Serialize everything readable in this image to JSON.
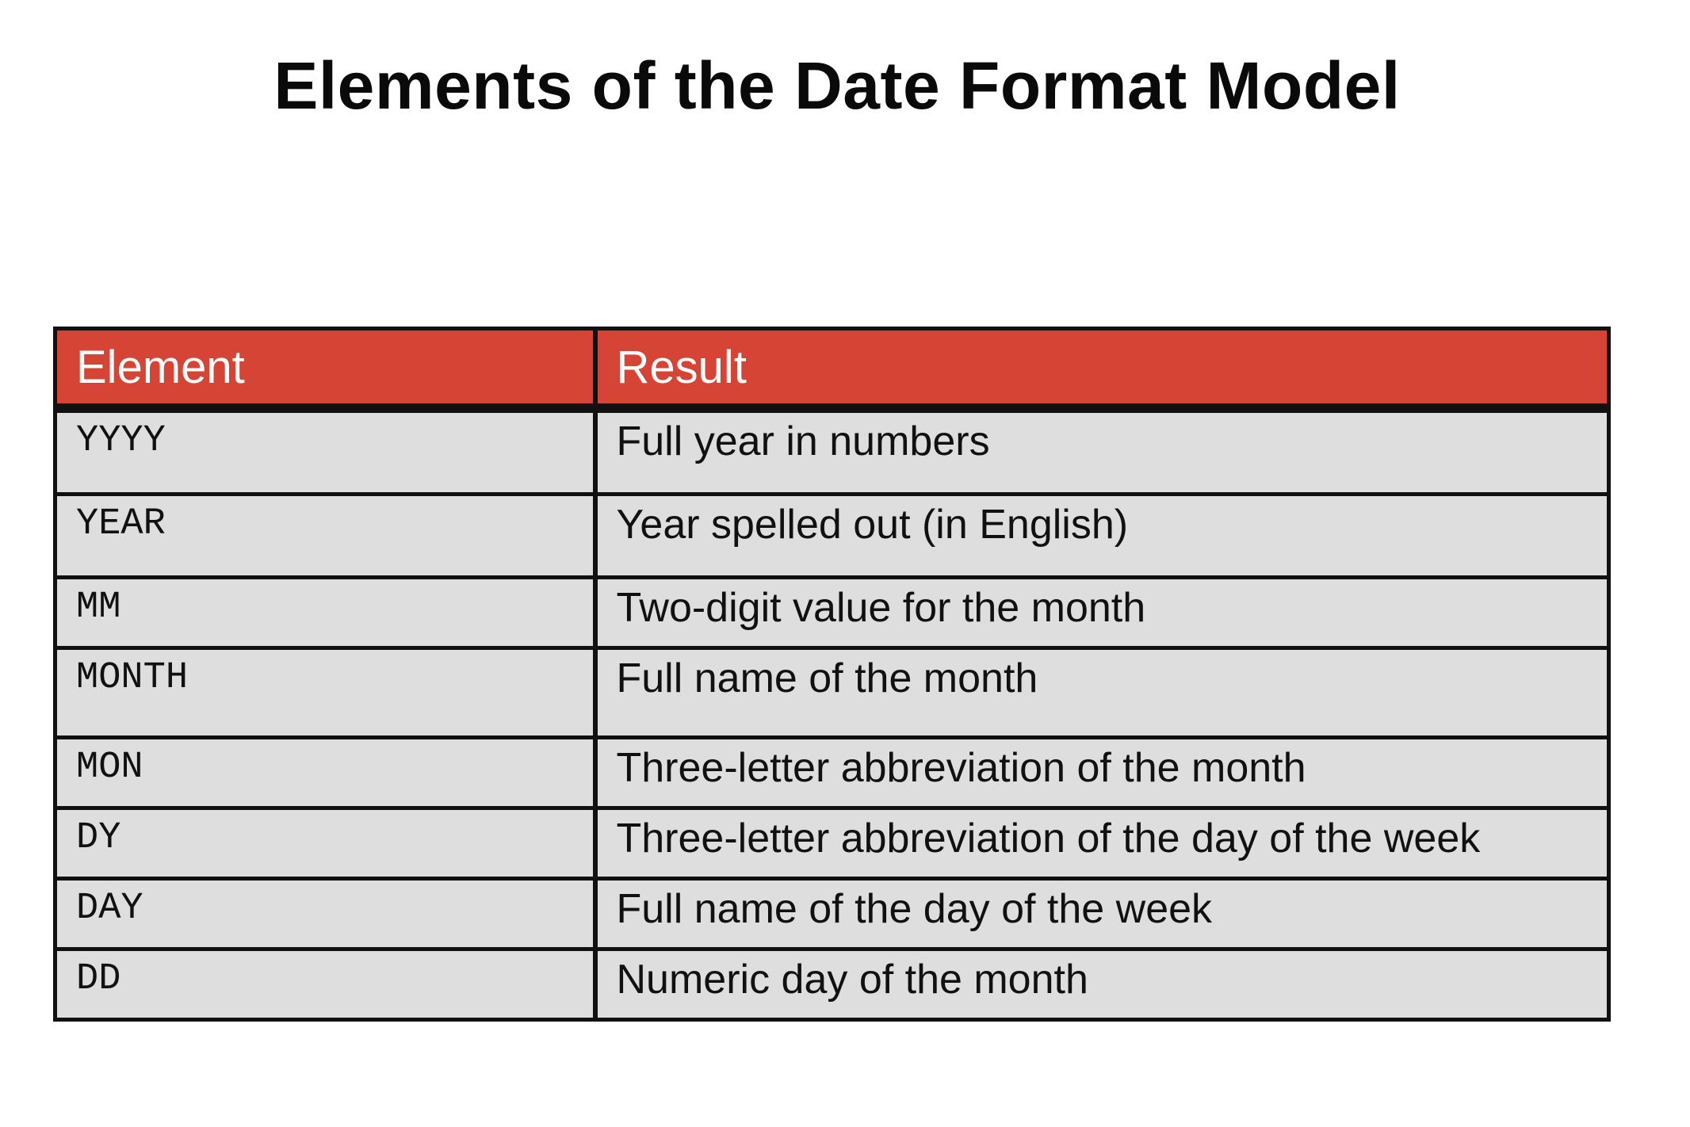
{
  "title": "Elements of the Date Format Model",
  "table": {
    "headers": [
      "Element",
      "Result"
    ],
    "rows": [
      {
        "element": "YYYY",
        "result": "Full year in numbers"
      },
      {
        "element": "YEAR",
        "result": "Year spelled out (in English)"
      },
      {
        "element": "MM",
        "result": "Two-digit value for the month"
      },
      {
        "element": "MONTH",
        "result": "Full name of the month"
      },
      {
        "element": "MON",
        "result": "Three-letter abbreviation of the month"
      },
      {
        "element": "DY",
        "result": "Three-letter abbreviation of the day of the week"
      },
      {
        "element": "DAY",
        "result": "Full name of the day of the week"
      },
      {
        "element": "DD",
        "result": "Numeric day of the month"
      }
    ]
  },
  "colors": {
    "header_background": "#d54434",
    "header_text": "#ffffff",
    "cell_background": "#dedede",
    "border": "#111111"
  }
}
